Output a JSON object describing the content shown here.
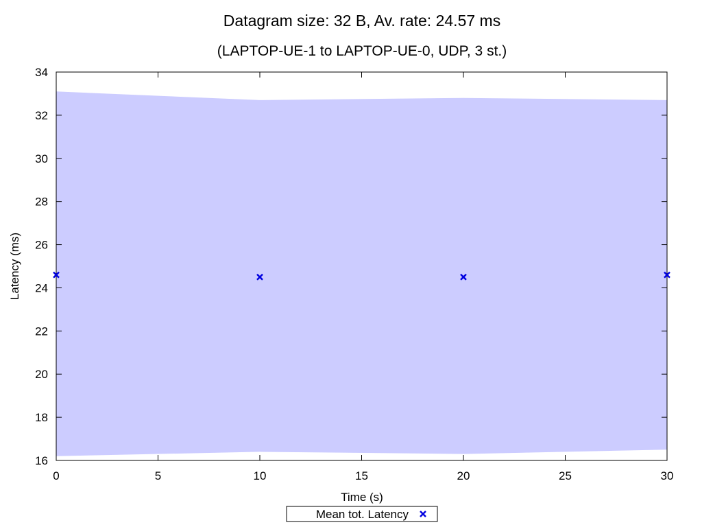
{
  "chart_data": {
    "type": "scatter",
    "title": "Datagram size: 32 B, Av. rate: 24.57 ms",
    "subtitle": "(LAPTOP-UE-1 to LAPTOP-UE-0, UDP, 3 st.)",
    "xlabel": "Time (s)",
    "ylabel": "Latency (ms)",
    "xlim": [
      0,
      30
    ],
    "ylim": [
      16,
      34
    ],
    "xticks": [
      0,
      5,
      10,
      15,
      20,
      25,
      30
    ],
    "yticks": [
      16,
      18,
      20,
      22,
      24,
      26,
      28,
      30,
      32,
      34
    ],
    "grid": false,
    "legend_position": "bottom-center",
    "series": [
      {
        "name": "Mean tot. Latency",
        "marker": "x",
        "color": "#0000e0",
        "x": [
          0,
          10,
          20,
          30
        ],
        "y": [
          24.6,
          24.5,
          24.5,
          24.6
        ]
      }
    ],
    "band": {
      "color": "#ccccff",
      "x": [
        0,
        10,
        20,
        30
      ],
      "upper": [
        33.1,
        32.7,
        32.8,
        32.7
      ],
      "lower": [
        16.2,
        16.4,
        16.3,
        16.5
      ]
    }
  }
}
